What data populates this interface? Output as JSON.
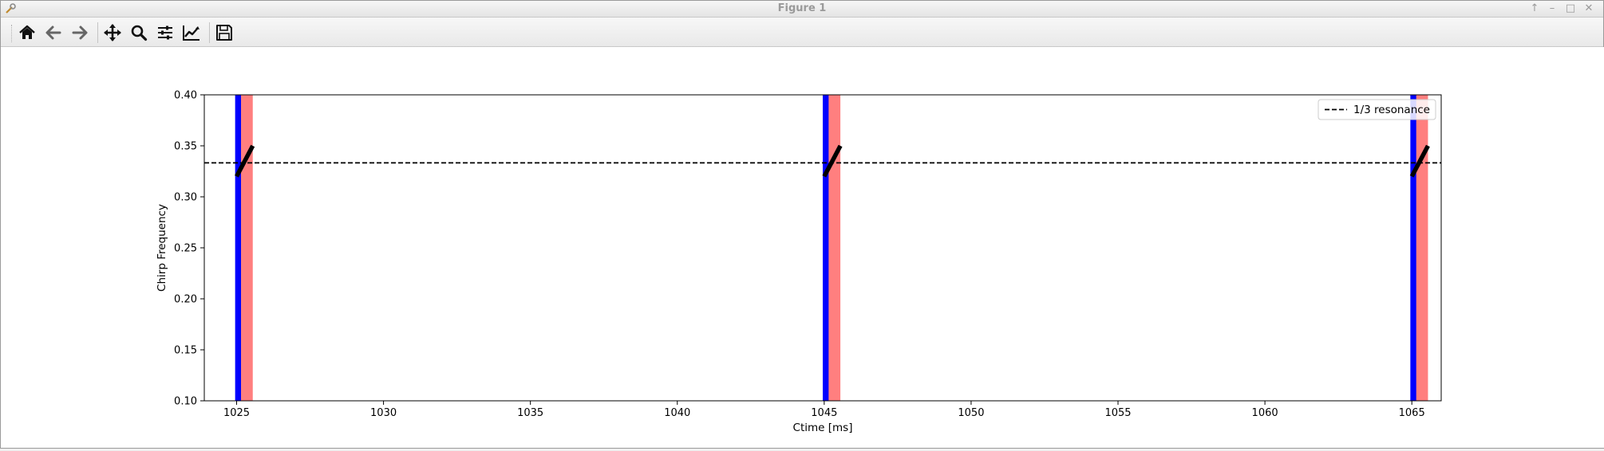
{
  "window": {
    "title": "Figure 1",
    "buttons": [
      "up-arrow",
      "minimize",
      "maximize",
      "close"
    ]
  },
  "toolbar": {
    "tools": [
      {
        "name": "home-icon"
      },
      {
        "name": "back-arrow-icon"
      },
      {
        "name": "forward-arrow-icon"
      },
      {
        "name": "pan-move-icon"
      },
      {
        "name": "zoom-magnifier-icon"
      },
      {
        "name": "configure-subplots-icon"
      },
      {
        "name": "edit-axis-curve-icon"
      },
      {
        "name": "save-floppy-icon"
      }
    ]
  },
  "chart_data": {
    "type": "line",
    "xlabel": "Ctime [ms]",
    "ylabel": "Chirp Frequency",
    "xlim": [
      1023.9,
      1066.0
    ],
    "ylim": [
      0.1,
      0.4
    ],
    "xticks": [
      1025,
      1030,
      1035,
      1040,
      1045,
      1050,
      1055,
      1060,
      1065
    ],
    "xtick_labels": [
      "1025",
      "1030",
      "1035",
      "1040",
      "1045",
      "1050",
      "1055",
      "1060",
      "1065"
    ],
    "yticks": [
      0.1,
      0.15,
      0.2,
      0.25,
      0.3,
      0.35,
      0.4
    ],
    "ytick_labels": [
      "0.10",
      "0.15",
      "0.20",
      "0.25",
      "0.30",
      "0.35",
      "0.40"
    ],
    "grid": false,
    "legend": {
      "placement": "upper right",
      "entries": [
        "1/3 resonance"
      ]
    },
    "resonance_line": {
      "y": 0.3333,
      "style": "dashed",
      "color": "#000000",
      "label": "1/3 resonance"
    },
    "red_bands": {
      "color": "#ff0000",
      "alpha": 0.5,
      "spans": [
        [
          1025.0,
          1025.55
        ],
        [
          1045.0,
          1045.55
        ],
        [
          1065.0,
          1065.55
        ]
      ]
    },
    "blue_bands": {
      "color": "#0000ff",
      "spans": [
        [
          1024.95,
          1025.15
        ],
        [
          1044.95,
          1045.15
        ],
        [
          1064.95,
          1065.15
        ]
      ]
    },
    "chirp_series": {
      "color": "#000000",
      "segments": [
        {
          "x": [
            1025.0,
            1025.55
          ],
          "y": [
            0.32,
            0.35
          ]
        },
        {
          "x": [
            1045.0,
            1045.55
          ],
          "y": [
            0.32,
            0.35
          ]
        },
        {
          "x": [
            1065.0,
            1065.55
          ],
          "y": [
            0.32,
            0.35
          ]
        }
      ]
    }
  }
}
